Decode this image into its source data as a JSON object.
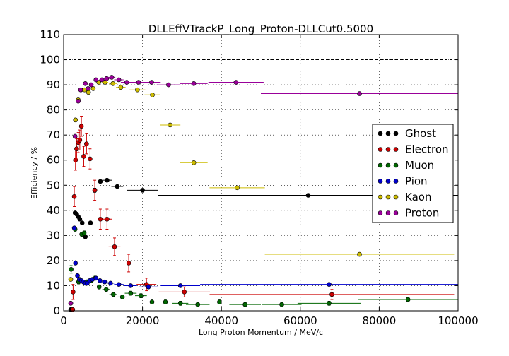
{
  "chart_data": {
    "type": "scatter",
    "title": "DLLEffVTrackP_Long_Proton-DLLCut0.5000",
    "xlabel": "Long Proton Momentum / MeV/c",
    "ylabel": "Efficiency / %",
    "xlim": [
      0,
      100000
    ],
    "ylim": [
      0,
      110
    ],
    "xticks": [
      0,
      20000,
      40000,
      60000,
      80000,
      100000
    ],
    "xtick_labels": [
      "0",
      "20000",
      "40000",
      "60000",
      "80000",
      "100000"
    ],
    "yticks": [
      0,
      10,
      20,
      30,
      40,
      50,
      60,
      70,
      80,
      90,
      100,
      110
    ],
    "ytick_labels": [
      "0",
      "10",
      "20",
      "30",
      "40",
      "50",
      "60",
      "70",
      "80",
      "90",
      "100",
      "110"
    ],
    "grid": true,
    "reference_line": 100,
    "legend_position": "center-right",
    "series": [
      {
        "name": "Ghost",
        "color": "#000000",
        "points": [
          {
            "x": 1800,
            "y": 0.5,
            "xerr": 300,
            "yerr": 0.5
          },
          {
            "x": 2900,
            "y": 39,
            "xerr": 200,
            "yerr": 0.5
          },
          {
            "x": 3300,
            "y": 38.5,
            "xerr": 200,
            "yerr": 0.5
          },
          {
            "x": 3700,
            "y": 37.5,
            "xerr": 200,
            "yerr": 0.5
          },
          {
            "x": 4100,
            "y": 36.5,
            "xerr": 200,
            "yerr": 0.5
          },
          {
            "x": 4700,
            "y": 35,
            "xerr": 300,
            "yerr": 0.5
          },
          {
            "x": 5500,
            "y": 29.5,
            "xerr": 400,
            "yerr": 0.8
          },
          {
            "x": 6800,
            "y": 35,
            "xerr": 500,
            "yerr": 0.5
          },
          {
            "x": 7900,
            "y": 48,
            "xerr": 500,
            "yerr": 0.8
          },
          {
            "x": 9300,
            "y": 51.5,
            "xerr": 700,
            "yerr": 0.5
          },
          {
            "x": 11000,
            "y": 52,
            "xerr": 1200,
            "yerr": 0.5
          },
          {
            "x": 13600,
            "y": 49.5,
            "xerr": 1500,
            "yerr": 0.5
          },
          {
            "x": 20000,
            "y": 48,
            "xerr": 4000,
            "yerr": 0.5
          },
          {
            "x": 62000,
            "y": 46,
            "xerr": 38000,
            "yerr": 0.5
          }
        ]
      },
      {
        "name": "Electron",
        "color": "#cc0000",
        "points": [
          {
            "x": 2300,
            "y": 0.5,
            "xerr": 300,
            "yerr": 0.5
          },
          {
            "x": 2400,
            "y": 7.5,
            "xerr": 200,
            "yerr": 3
          },
          {
            "x": 2700,
            "y": 45.5,
            "xerr": 200,
            "yerr": 4
          },
          {
            "x": 3000,
            "y": 60,
            "xerr": 200,
            "yerr": 4
          },
          {
            "x": 3300,
            "y": 64.5,
            "xerr": 200,
            "yerr": 4
          },
          {
            "x": 3700,
            "y": 67,
            "xerr": 200,
            "yerr": 4
          },
          {
            "x": 4100,
            "y": 68,
            "xerr": 200,
            "yerr": 4
          },
          {
            "x": 4500,
            "y": 73.5,
            "xerr": 200,
            "yerr": 4
          },
          {
            "x": 5100,
            "y": 61.5,
            "xerr": 300,
            "yerr": 4
          },
          {
            "x": 5800,
            "y": 66.5,
            "xerr": 300,
            "yerr": 4
          },
          {
            "x": 6700,
            "y": 60.5,
            "xerr": 500,
            "yerr": 4
          },
          {
            "x": 7900,
            "y": 48,
            "xerr": 500,
            "yerr": 4
          },
          {
            "x": 9300,
            "y": 36.5,
            "xerr": 700,
            "yerr": 4
          },
          {
            "x": 11000,
            "y": 36.5,
            "xerr": 1200,
            "yerr": 4
          },
          {
            "x": 12900,
            "y": 25.5,
            "xerr": 1500,
            "yerr": 3.5
          },
          {
            "x": 16500,
            "y": 19,
            "xerr": 2000,
            "yerr": 3.5
          },
          {
            "x": 21000,
            "y": 10.5,
            "xerr": 2500,
            "yerr": 2.5
          },
          {
            "x": 30600,
            "y": 7.5,
            "xerr": 6500,
            "yerr": 2
          },
          {
            "x": 68000,
            "y": 6.5,
            "xerr": 31000,
            "yerr": 2
          }
        ]
      },
      {
        "name": "Muon",
        "color": "#006600",
        "points": [
          {
            "x": 1900,
            "y": 16.5,
            "xerr": 400,
            "yerr": 1.5
          },
          {
            "x": 2900,
            "y": 32.5,
            "xerr": 200,
            "yerr": 0.8
          },
          {
            "x": 3800,
            "y": 11.5,
            "xerr": 300,
            "yerr": 0.8
          },
          {
            "x": 4600,
            "y": 30.5,
            "xerr": 300,
            "yerr": 0.8
          },
          {
            "x": 5200,
            "y": 31,
            "xerr": 300,
            "yerr": 0.8
          },
          {
            "x": 6000,
            "y": 11.5,
            "xerr": 400,
            "yerr": 0.8
          },
          {
            "x": 7000,
            "y": 12,
            "xerr": 400,
            "yerr": 0.8
          },
          {
            "x": 8000,
            "y": 13,
            "xerr": 500,
            "yerr": 0.8
          },
          {
            "x": 9000,
            "y": 9.5,
            "xerr": 500,
            "yerr": 0.8
          },
          {
            "x": 10800,
            "y": 8.5,
            "xerr": 1000,
            "yerr": 0.8
          },
          {
            "x": 12600,
            "y": 6.5,
            "xerr": 1000,
            "yerr": 0.8
          },
          {
            "x": 14900,
            "y": 5.5,
            "xerr": 1200,
            "yerr": 0.8
          },
          {
            "x": 17000,
            "y": 7,
            "xerr": 1500,
            "yerr": 0.8
          },
          {
            "x": 19600,
            "y": 6,
            "xerr": 1500,
            "yerr": 0.8
          },
          {
            "x": 22400,
            "y": 3.5,
            "xerr": 1500,
            "yerr": 0.8
          },
          {
            "x": 25800,
            "y": 3.5,
            "xerr": 2000,
            "yerr": 0.8
          },
          {
            "x": 29600,
            "y": 3,
            "xerr": 2000,
            "yerr": 0.8
          },
          {
            "x": 34000,
            "y": 2.5,
            "xerr": 3000,
            "yerr": 0.8
          },
          {
            "x": 39500,
            "y": 3.5,
            "xerr": 3000,
            "yerr": 0.8
          },
          {
            "x": 46000,
            "y": 2.5,
            "xerr": 4000,
            "yerr": 0.8
          },
          {
            "x": 55300,
            "y": 2.5,
            "xerr": 5000,
            "yerr": 0.8
          },
          {
            "x": 67300,
            "y": 3,
            "xerr": 8000,
            "yerr": 0.8
          },
          {
            "x": 87300,
            "y": 4.5,
            "xerr": 12700,
            "yerr": 0.8
          }
        ]
      },
      {
        "name": "Pion",
        "color": "#0000cc",
        "points": [
          {
            "x": 1800,
            "y": 3,
            "xerr": 300,
            "yerr": 0.5
          },
          {
            "x": 2700,
            "y": 33,
            "xerr": 200,
            "yerr": 0.5
          },
          {
            "x": 3000,
            "y": 19,
            "xerr": 200,
            "yerr": 0.5
          },
          {
            "x": 3500,
            "y": 14,
            "xerr": 200,
            "yerr": 0.5
          },
          {
            "x": 4000,
            "y": 12.5,
            "xerr": 200,
            "yerr": 0.5
          },
          {
            "x": 4500,
            "y": 12,
            "xerr": 200,
            "yerr": 0.5
          },
          {
            "x": 5000,
            "y": 11.5,
            "xerr": 300,
            "yerr": 0.5
          },
          {
            "x": 5500,
            "y": 11,
            "xerr": 300,
            "yerr": 0.5
          },
          {
            "x": 6000,
            "y": 11,
            "xerr": 300,
            "yerr": 0.5
          },
          {
            "x": 6600,
            "y": 12,
            "xerr": 400,
            "yerr": 0.5
          },
          {
            "x": 7300,
            "y": 12.5,
            "xerr": 400,
            "yerr": 0.5
          },
          {
            "x": 8200,
            "y": 13,
            "xerr": 500,
            "yerr": 0.5
          },
          {
            "x": 9200,
            "y": 12,
            "xerr": 600,
            "yerr": 0.5
          },
          {
            "x": 10400,
            "y": 11.5,
            "xerr": 800,
            "yerr": 0.5
          },
          {
            "x": 11900,
            "y": 11,
            "xerr": 900,
            "yerr": 0.5
          },
          {
            "x": 14000,
            "y": 10.5,
            "xerr": 1200,
            "yerr": 0.5
          },
          {
            "x": 17000,
            "y": 10,
            "xerr": 1600,
            "yerr": 0.5
          },
          {
            "x": 21500,
            "y": 9.5,
            "xerr": 2500,
            "yerr": 0.5
          },
          {
            "x": 29600,
            "y": 10,
            "xerr": 5000,
            "yerr": 0.5
          },
          {
            "x": 67300,
            "y": 10.5,
            "xerr": 32700,
            "yerr": 0.5
          }
        ]
      },
      {
        "name": "Kaon",
        "color": "#ccbb00",
        "points": [
          {
            "x": 1800,
            "y": 12.5,
            "xerr": 300,
            "yerr": 0.5
          },
          {
            "x": 3000,
            "y": 76,
            "xerr": 200,
            "yerr": 0.5
          },
          {
            "x": 3700,
            "y": 84,
            "xerr": 200,
            "yerr": 0.5
          },
          {
            "x": 4400,
            "y": 88,
            "xerr": 300,
            "yerr": 0.5
          },
          {
            "x": 5300,
            "y": 88,
            "xerr": 300,
            "yerr": 0.5
          },
          {
            "x": 6300,
            "y": 87,
            "xerr": 400,
            "yerr": 0.5
          },
          {
            "x": 7500,
            "y": 88.5,
            "xerr": 500,
            "yerr": 0.5
          },
          {
            "x": 8900,
            "y": 91,
            "xerr": 600,
            "yerr": 0.5
          },
          {
            "x": 10500,
            "y": 91,
            "xerr": 800,
            "yerr": 0.5
          },
          {
            "x": 12500,
            "y": 90.5,
            "xerr": 1000,
            "yerr": 0.5
          },
          {
            "x": 14500,
            "y": 89,
            "xerr": 1200,
            "yerr": 0.5
          },
          {
            "x": 18700,
            "y": 88,
            "xerr": 2000,
            "yerr": 0.5
          },
          {
            "x": 22500,
            "y": 86,
            "xerr": 2000,
            "yerr": 0.5
          },
          {
            "x": 27000,
            "y": 74,
            "xerr": 2600,
            "yerr": 0.5
          },
          {
            "x": 33000,
            "y": 59,
            "xerr": 3500,
            "yerr": 0.5
          },
          {
            "x": 44000,
            "y": 49,
            "xerr": 7000,
            "yerr": 0.5
          },
          {
            "x": 75000,
            "y": 22.5,
            "xerr": 24000,
            "yerr": 0.5
          }
        ]
      },
      {
        "name": "Proton",
        "color": "#990099",
        "points": [
          {
            "x": 1800,
            "y": 3,
            "xerr": 300,
            "yerr": 0.5
          },
          {
            "x": 2900,
            "y": 69.5,
            "xerr": 200,
            "yerr": 0.5
          },
          {
            "x": 3700,
            "y": 83.5,
            "xerr": 200,
            "yerr": 0.5
          },
          {
            "x": 4300,
            "y": 88,
            "xerr": 300,
            "yerr": 0.5
          },
          {
            "x": 5500,
            "y": 90.5,
            "xerr": 400,
            "yerr": 0.5
          },
          {
            "x": 6200,
            "y": 88.5,
            "xerr": 400,
            "yerr": 0.5
          },
          {
            "x": 7000,
            "y": 90,
            "xerr": 500,
            "yerr": 0.5
          },
          {
            "x": 8200,
            "y": 92,
            "xerr": 500,
            "yerr": 0.5
          },
          {
            "x": 9700,
            "y": 92,
            "xerr": 700,
            "yerr": 0.5
          },
          {
            "x": 10900,
            "y": 92.5,
            "xerr": 800,
            "yerr": 0.5
          },
          {
            "x": 12200,
            "y": 93,
            "xerr": 900,
            "yerr": 0.5
          },
          {
            "x": 14000,
            "y": 92,
            "xerr": 1200,
            "yerr": 0.5
          },
          {
            "x": 16000,
            "y": 91,
            "xerr": 1500,
            "yerr": 0.5
          },
          {
            "x": 19000,
            "y": 91,
            "xerr": 2000,
            "yerr": 0.5
          },
          {
            "x": 22300,
            "y": 91,
            "xerr": 2300,
            "yerr": 0.5
          },
          {
            "x": 26600,
            "y": 90,
            "xerr": 3000,
            "yerr": 0.5
          },
          {
            "x": 33000,
            "y": 90.5,
            "xerr": 3500,
            "yerr": 0.5
          },
          {
            "x": 43700,
            "y": 91,
            "xerr": 7000,
            "yerr": 0.5
          },
          {
            "x": 75000,
            "y": 86.5,
            "xerr": 25000,
            "yerr": 0.5
          }
        ]
      }
    ]
  }
}
